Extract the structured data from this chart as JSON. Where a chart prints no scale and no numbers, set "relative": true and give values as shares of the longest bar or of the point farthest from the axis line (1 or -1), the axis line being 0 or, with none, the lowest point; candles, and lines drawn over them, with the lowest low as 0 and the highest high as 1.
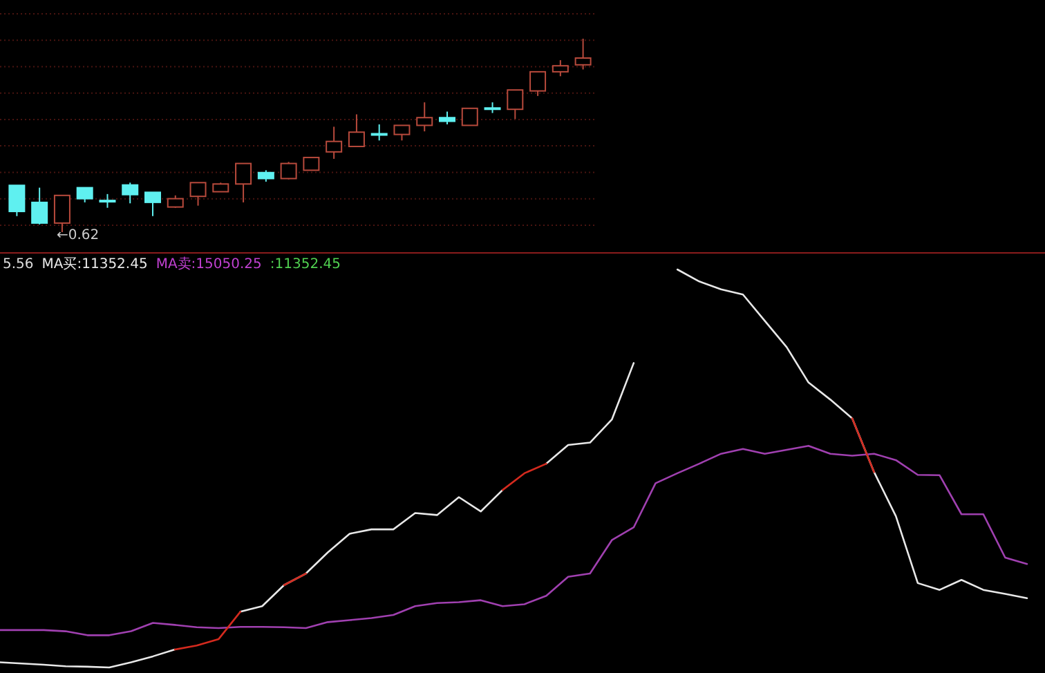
{
  "chart_data": [
    {
      "type": "candlestick",
      "relative": true,
      "ref_lines": [
        {
          "axis": "y",
          "value": 1.129,
          "color": "#4a1410",
          "line_style": "dotted"
        },
        {
          "axis": "y",
          "value": 0.992,
          "color": "#4a1410",
          "line_style": "dotted"
        },
        {
          "axis": "y",
          "value": 0.855,
          "color": "#4a1410",
          "line_style": "dotted"
        },
        {
          "axis": "y",
          "value": 0.719,
          "color": "#4a1410",
          "line_style": "dotted"
        },
        {
          "axis": "y",
          "value": 0.582,
          "color": "#4a1410",
          "line_style": "dotted"
        },
        {
          "axis": "y",
          "value": 0.446,
          "color": "#4a1410",
          "line_style": "dotted"
        },
        {
          "axis": "y",
          "value": 0.309,
          "color": "#4a1410",
          "line_style": "dotted"
        },
        {
          "axis": "y",
          "value": 0.172,
          "color": "#4a1410",
          "line_style": "dotted"
        },
        {
          "axis": "y",
          "value": 0.036,
          "color": "#4a1410",
          "line_style": "dotted"
        }
      ],
      "categories": [
        null,
        null,
        null,
        null,
        null,
        null,
        null,
        null,
        null,
        null,
        null,
        null,
        null,
        null,
        null,
        null,
        null,
        null,
        null,
        null,
        null,
        null,
        null,
        null,
        null,
        null
      ],
      "ohlc": [
        [
          0.242,
          0.242,
          0.083,
          0.107
        ],
        [
          0.154,
          0.23,
          0.04,
          0.047
        ],
        [
          0.047,
          0.19,
          0,
          0.19
        ],
        [
          0.23,
          0.23,
          0.154,
          0.173
        ],
        [
          0.164,
          0.197,
          0.126,
          0.159
        ],
        [
          0.244,
          0.256,
          0.149,
          0.194
        ],
        [
          0.206,
          0.206,
          0.083,
          0.154
        ],
        [
          0.13,
          0.19,
          0.126,
          0.173
        ],
        [
          0.185,
          0.256,
          0.137,
          0.256
        ],
        [
          0.209,
          0.256,
          0.209,
          0.249
        ],
        [
          0.249,
          0.355,
          0.154,
          0.355
        ],
        [
          0.308,
          0.32,
          0.261,
          0.277
        ],
        [
          0.277,
          0.363,
          0.273,
          0.355
        ],
        [
          0.32,
          0.386,
          0.32,
          0.386
        ],
        [
          0.415,
          0.545,
          0.379,
          0.469
        ],
        [
          0.443,
          0.609,
          0.443,
          0.517
        ],
        [
          0.509,
          0.557,
          0.474,
          0.505
        ],
        [
          0.505,
          0.552,
          0.474,
          0.552
        ],
        [
          0.552,
          0.671,
          0.521,
          0.592
        ],
        [
          0.592,
          0.623,
          0.557,
          0.573
        ],
        [
          0.552,
          0.64,
          0.552,
          0.64
        ],
        [
          0.642,
          0.671,
          0.616,
          0.637
        ],
        [
          0.635,
          0.735,
          0.585,
          0.735
        ],
        [
          0.73,
          0.829,
          0.704,
          0.829
        ],
        [
          0.829,
          0.889,
          0.806,
          0.86
        ],
        [
          0.865,
          1,
          0.841,
          0.9
        ]
      ],
      "colors": [
        "#5ff0f0",
        "#5ff0f0",
        "#b84a3c",
        "#5ff0f0",
        "#5ff0f0",
        "#5ff0f0",
        "#5ff0f0",
        "#b84a3c",
        "#b84a3c",
        "#b84a3c",
        "#b84a3c",
        "#5ff0f0",
        "#b84a3c",
        "#b84a3c",
        "#b84a3c",
        "#b84a3c",
        "#5ff0f0",
        "#b84a3c",
        "#b84a3c",
        "#5ff0f0",
        "#b84a3c",
        "#5ff0f0",
        "#b84a3c",
        "#b84a3c",
        "#b84a3c",
        "#b84a3c"
      ],
      "annotations": [
        "←0.62"
      ]
    },
    {
      "type": "line",
      "relative": true,
      "legend": "top left",
      "categories": [
        null,
        null,
        null,
        null,
        null,
        null,
        null,
        null,
        null,
        null,
        null,
        null,
        null,
        null,
        null,
        null,
        null,
        null,
        null,
        null,
        null,
        null,
        null,
        null,
        null,
        null,
        null,
        null,
        null,
        null,
        null,
        null,
        null,
        null,
        null,
        null,
        null,
        null,
        null,
        null,
        null,
        null,
        null,
        null,
        null,
        null,
        null,
        null
      ],
      "series": [
        {
          "name": "MA买:11352.45",
          "color": "#e8e8e8",
          "values": [
            0.013,
            0.01,
            0.007,
            0.003,
            0.002,
            0,
            0.013,
            0.028,
            0.045,
            null,
            null,
            0.14,
            0.154,
            0.207,
            0.236,
            0.289,
            0.336,
            0.347,
            0.347,
            0.388,
            0.383,
            0.428,
            0.392,
            0.446,
            null,
            0.512,
            0.559,
            0.565,
            0.623,
            0.765,
            null,
            1,
            0.97,
            0.95,
            0.937,
            0.871,
            0.805,
            0.716,
            0.673,
            0.626,
            0.491,
            0.38,
            0.212,
            0.195,
            0.22,
            0.195,
            0.185,
            0.174
          ]
        },
        {
          "name": "MA卖:15050.25",
          "color": "#a040b0",
          "values": [
            0.094,
            0.094,
            0.094,
            0.091,
            0.081,
            0.081,
            0.091,
            0.112,
            0.107,
            0.101,
            0.099,
            0.102,
            0.102,
            0.101,
            0.099,
            0.114,
            0.119,
            0.124,
            0.132,
            0.154,
            0.162,
            0.164,
            0.169,
            0.154,
            0.159,
            0.18,
            0.228,
            0.236,
            0.32,
            0.352,
            0.463,
            0.488,
            0.512,
            0.537,
            0.549,
            0.537,
            0.547,
            0.557,
            0.537,
            0.532,
            0.537,
            0.521,
            0.484,
            0.483,
            0.385,
            0.385,
            0.276,
            0.26
          ]
        },
        {
          "color": "#d42a1e",
          "values": [
            null,
            null,
            null,
            null,
            null,
            null,
            null,
            null,
            0.045,
            0.055,
            0.071,
            0.14,
            null,
            0.207,
            0.236,
            null,
            null,
            null,
            null,
            null,
            null,
            null,
            null,
            0.446,
            0.488,
            0.512,
            null,
            null,
            null,
            null,
            null,
            null,
            null,
            null,
            null,
            null,
            null,
            null,
            null,
            0.626,
            0.491,
            null,
            null,
            null,
            null,
            null,
            null,
            null
          ]
        }
      ],
      "annotations": [
        "5.56",
        ":11352.45"
      ]
    }
  ]
}
